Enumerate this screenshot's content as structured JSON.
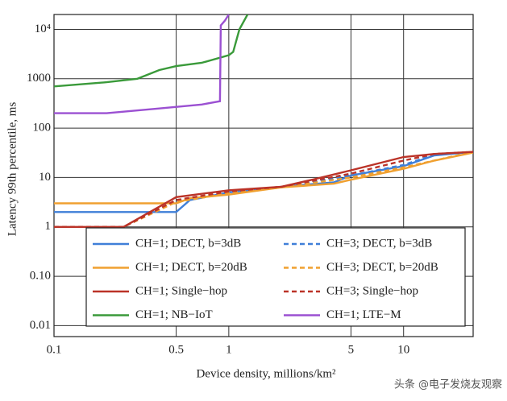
{
  "chart_data": {
    "type": "line",
    "xlabel": "Device density, millions/km²",
    "ylabel": "Latency 99th percentile, ms",
    "xlog": true,
    "ylog": true,
    "grid": true,
    "xlim": [
      0.1,
      25
    ],
    "ylim": [
      0.006,
      20000
    ],
    "xticks": [
      0.1,
      0.5,
      1,
      5,
      10
    ],
    "yticks": [
      {
        "value": 0.01,
        "label": "0.01"
      },
      {
        "value": 0.1,
        "label": "0.10"
      },
      1,
      10,
      100,
      1000,
      {
        "value": 10000,
        "label": "10⁴"
      }
    ],
    "legend": "lower right",
    "series": [
      {
        "name": "CH=1; DECT, b=3dB",
        "color": "#3f7fd8",
        "dash": false,
        "x": [
          0.1,
          0.5,
          0.6,
          1,
          2,
          4,
          5,
          10,
          15,
          25
        ],
        "values": [
          2,
          2,
          3.5,
          5,
          6.5,
          8,
          11,
          17,
          28,
          33
        ]
      },
      {
        "name": "CH=3; DECT, b=3dB",
        "color": "#3f7fd8",
        "dash": true,
        "x": [
          0.1,
          0.25,
          0.5,
          1,
          2,
          5,
          10,
          15,
          25
        ],
        "values": [
          1,
          1,
          3.3,
          5,
          6.3,
          11,
          18,
          29,
          33
        ]
      },
      {
        "name": "CH=1; DECT, b=20dB",
        "color": "#f0a030",
        "dash": false,
        "x": [
          0.1,
          0.5,
          0.6,
          1,
          2,
          4,
          5,
          10,
          15,
          25
        ],
        "values": [
          3,
          3,
          3.8,
          4.5,
          6.3,
          7.5,
          9,
          15,
          22,
          32
        ]
      },
      {
        "name": "CH=3; DECT, b=20dB",
        "color": "#f0a030",
        "dash": true,
        "x": [
          0.1,
          0.25,
          0.5,
          1,
          2,
          5,
          10,
          25
        ],
        "values": [
          1,
          1,
          3.2,
          4.8,
          6.3,
          10,
          16,
          33
        ]
      },
      {
        "name": "CH=1; Single−hop",
        "color": "#bb3328",
        "dash": false,
        "x": [
          0.1,
          0.25,
          0.5,
          1,
          2,
          3,
          5,
          10,
          15,
          25
        ],
        "values": [
          1,
          1,
          4,
          5.5,
          6.5,
          9,
          14,
          26,
          30,
          33
        ]
      },
      {
        "name": "CH=3; Single−hop",
        "color": "#bb3328",
        "dash": true,
        "x": [
          0.1,
          0.25,
          0.5,
          1,
          2,
          5,
          10,
          15,
          25
        ],
        "values": [
          1,
          1,
          3.5,
          5.2,
          6.5,
          12,
          22,
          30,
          33
        ]
      },
      {
        "name": "CH=1; NB−IoT",
        "color": "#3a9a3a",
        "dash": false,
        "x": [
          0.1,
          0.2,
          0.3,
          0.4,
          0.5,
          0.7,
          1,
          1.06,
          1.15,
          1.28
        ],
        "values": [
          700,
          850,
          1000,
          1500,
          1800,
          2100,
          3000,
          3500,
          10000,
          20000
        ]
      },
      {
        "name": "CH=1; LTE−M",
        "color": "#9b50d2",
        "dash": false,
        "x": [
          0.1,
          0.2,
          0.4,
          0.7,
          0.89,
          0.9,
          0.95,
          1.0
        ],
        "values": [
          200,
          200,
          250,
          300,
          350,
          12000,
          15000,
          20000
        ]
      }
    ],
    "watermark": "头条 @电子发烧友观察"
  }
}
